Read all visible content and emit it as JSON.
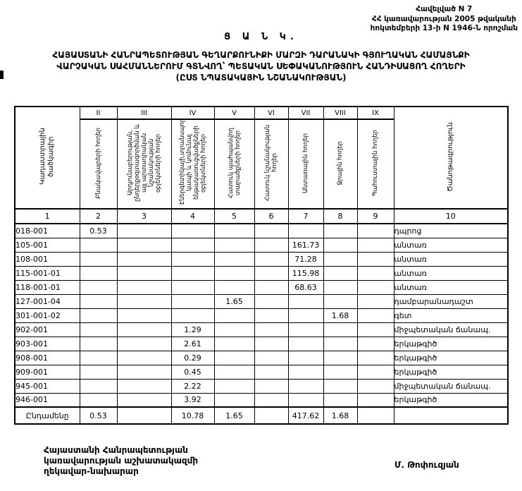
{
  "header": {
    "appendix_lines": [
      "Հավելված N 7",
      "ՀՀ կառավարության 2005 թվականի",
      "հոկտեմբերի 13-ի N 1946-Ն որոշման"
    ],
    "doc_type": "Ց Ա Ն Կ.",
    "title_lines": [
      "ՀԱՅԱՍՏԱՆԻ ՀԱՆՐԱՊԵՏՈՒԹՅԱՆ ԳԵՂԱՐՔՈՒՆԻՔԻ ՄԱՐԶԻ ԴԱՐԱՆԱԿԻ ԳՅՈՒՂԱԿԱՆ ՀԱՄԱՅՆՔԻ",
      "ՎԱՐՉԱԿԱՆ ՍԱՀՄԱՆՆԵՐՈՒՄ ԳՏՆՎՈՂ՝ ՊԵՏԱԿԱՆ ՍԵՓԱԿԱՆՈՒԹՅՈՒՆ ՀԱՆԴԻՍԱՑՈՂ ՀՈՂԵՐԻ",
      "(ԸՍՏ ՆՊԱՏԱԿԱՅԻՆ ՆՇԱՆԱԿՈՒԹՅԱՆ)"
    ]
  },
  "table": {
    "col1_header": "Կադաստրային ծածկագիր",
    "col10_header": "Ծանոթագրություն",
    "roman_numerals": [
      "II",
      "III",
      "IV",
      "V",
      "VI",
      "VII",
      "VIII",
      "IX"
    ],
    "rotated_headers": [
      "Բնակավայրերի հողեր",
      "Արդյունաբերության, ընդերքօգտագործման և այլ արտադրական նշանակության օբյեկտների հողեր",
      "Էներգետիկայի,տրանսպորտի, կապի և կոմունալ ենթակառուցվածքների օբյեկտների հողեր",
      "Հատուկ պահպանվող տարածքների հողեր",
      "Հատուկ նշանակության հողեր",
      "Անտառային հողեր",
      "Ջրային հողեր",
      "Պահուստային հողեր"
    ],
    "number_row": [
      "1",
      "2",
      "3",
      "4",
      "5",
      "6",
      "7",
      "8",
      "9",
      "10"
    ],
    "rows": [
      {
        "code": "018-001",
        "values": [
          "0.53",
          "",
          "",
          "",
          "",
          "",
          "",
          ""
        ],
        "note": "դպրոց"
      },
      {
        "code": "105-001",
        "values": [
          "",
          "",
          "",
          "",
          "",
          "161.73",
          "",
          ""
        ],
        "note": "անտառ"
      },
      {
        "code": "108-001",
        "values": [
          "",
          "",
          "",
          "",
          "",
          "71.28",
          "",
          ""
        ],
        "note": "անտառ"
      },
      {
        "code": "115-001-01",
        "values": [
          "",
          "",
          "",
          "",
          "",
          "115.98",
          "",
          ""
        ],
        "note": "անտառ"
      },
      {
        "code": "118-001-01",
        "values": [
          "",
          "",
          "",
          "",
          "",
          "68.63",
          "",
          ""
        ],
        "note": "անտառ"
      },
      {
        "code": "127-001-04",
        "values": [
          "",
          "",
          "",
          "1.65",
          "",
          "",
          "",
          ""
        ],
        "note": "դամբարանադաշտ"
      },
      {
        "code": "301-001-02",
        "values": [
          "",
          "",
          "",
          "",
          "",
          "",
          "1.68",
          ""
        ],
        "note": "գետ"
      },
      {
        "code": "902-001",
        "values": [
          "",
          "",
          "1.29",
          "",
          "",
          "",
          "",
          ""
        ],
        "note": "միջպետական ճանապ."
      },
      {
        "code": "903-001",
        "values": [
          "",
          "",
          "2.61",
          "",
          "",
          "",
          "",
          ""
        ],
        "note": "երկաթգիծ"
      },
      {
        "code": "908-001",
        "values": [
          "",
          "",
          "0.29",
          "",
          "",
          "",
          "",
          ""
        ],
        "note": "երկաթգիծ"
      },
      {
        "code": "909-001",
        "values": [
          "",
          "",
          "0.45",
          "",
          "",
          "",
          "",
          ""
        ],
        "note": "երկաթգիծ"
      },
      {
        "code": "945-001",
        "values": [
          "",
          "",
          "2.22",
          "",
          "",
          "",
          "",
          ""
        ],
        "note": "միջպետական ճանապ."
      },
      {
        "code": "946-001",
        "values": [
          "",
          "",
          "3.92",
          "",
          "",
          "",
          "",
          ""
        ],
        "note": "երկաթգիծ"
      }
    ],
    "total": {
      "label": "Ընդամենը",
      "values": [
        "0.53",
        "",
        "10.78",
        "1.65",
        "",
        "417.62",
        "1.68",
        ""
      ],
      "note": ""
    }
  },
  "footer": {
    "left_lines": [
      "Հայաստանի Հանրապետության",
      "կառավարության աշխատակազմի",
      "ղեկավար-նախարար"
    ],
    "signature": "Մ. Թոփուզյան"
  }
}
